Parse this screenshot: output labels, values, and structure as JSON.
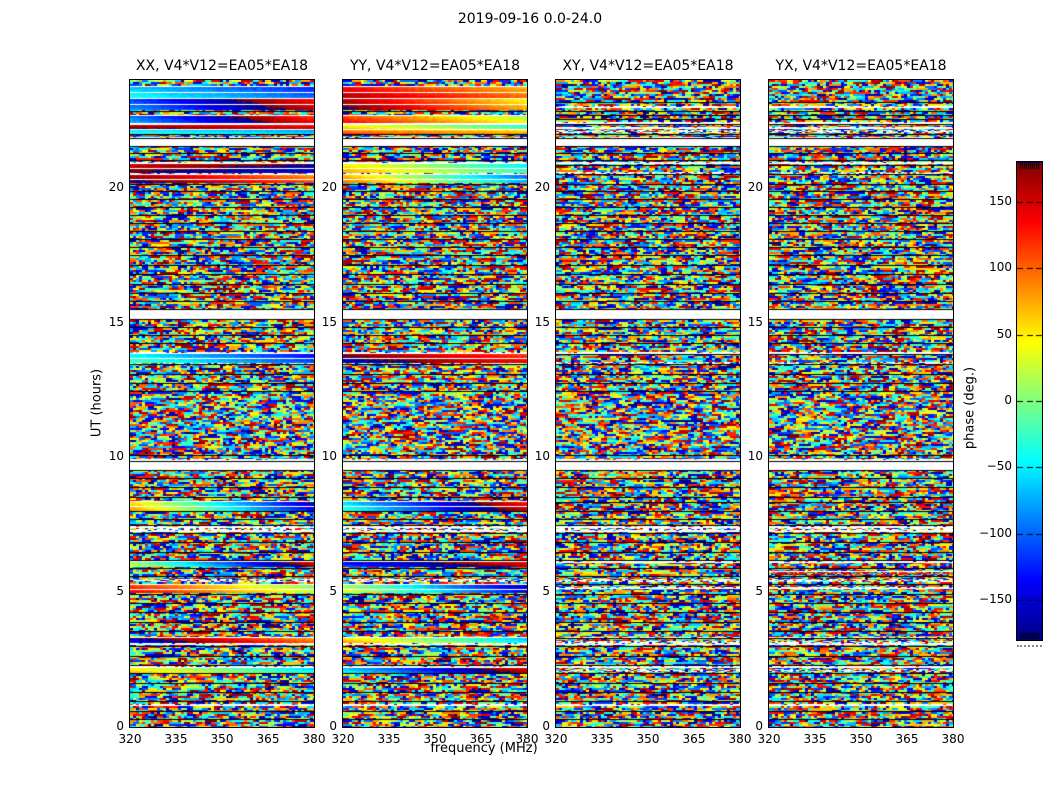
{
  "figure": {
    "title": "2019-09-16 0.0-24.0",
    "xlabel": "frequency (MHz)",
    "ylabel": "UT (hours)",
    "colorbar_label": "phase (deg.)"
  },
  "chart_data": {
    "type": "heatmap",
    "colormap": "jet",
    "value_label": "phase (deg.)",
    "clim_deg": [
      -180,
      180
    ],
    "x_range_mhz": [
      320,
      380
    ],
    "y_range_hours": [
      0,
      24
    ],
    "x_tick_values": [
      320,
      335,
      350,
      365,
      380
    ],
    "x_tick_labels": [
      "320",
      "335",
      "350",
      "365",
      "380"
    ],
    "y_tick_values": [
      0,
      5,
      10,
      15,
      20
    ],
    "y_tick_labels": [
      "0",
      "5",
      "10",
      "15",
      "20"
    ],
    "colorbar_tick_values": [
      150,
      100,
      50,
      0,
      -50,
      -100,
      -150
    ],
    "colorbar_tick_labels": [
      "150",
      "100",
      "50",
      "0",
      "−50",
      "−100",
      "−150"
    ],
    "panels": [
      {
        "pol": "XX",
        "title": "XX, V4*V12=EA05*EA18",
        "coherent_bands": [
          [
            23.35,
            23.75,
            -50,
            -110
          ],
          [
            22.9,
            23.3,
            -95,
            -215
          ],
          [
            22.4,
            22.68,
            -80,
            -230
          ],
          [
            22.18,
            22.32,
            175,
            145
          ],
          [
            22.0,
            22.14,
            -35,
            -65
          ],
          [
            20.55,
            20.9,
            168,
            200
          ],
          [
            20.18,
            20.48,
            180,
            95
          ],
          [
            13.5,
            13.82,
            -30,
            -120
          ],
          [
            8.02,
            8.33,
            70,
            -150
          ],
          [
            5.93,
            6.12,
            25,
            -200
          ],
          [
            4.98,
            5.28,
            130,
            15
          ],
          [
            3.12,
            3.3,
            -150,
            -268
          ],
          [
            2.02,
            2.2,
            60,
            -45
          ]
        ]
      },
      {
        "pol": "YY",
        "title": "YY, V4*V12=EA05*EA18",
        "coherent_bands": [
          [
            23.35,
            23.75,
            150,
            85
          ],
          [
            22.9,
            23.3,
            175,
            60
          ],
          [
            22.4,
            22.68,
            125,
            30
          ],
          [
            22.18,
            22.32,
            60,
            -20
          ],
          [
            22.0,
            22.14,
            100,
            70
          ],
          [
            20.55,
            20.9,
            65,
            -35
          ],
          [
            20.18,
            20.48,
            85,
            -85
          ],
          [
            13.5,
            13.82,
            -170,
            -232
          ],
          [
            8.02,
            8.33,
            -40,
            -215
          ],
          [
            5.93,
            6.12,
            -120,
            -205
          ],
          [
            4.98,
            5.28,
            30,
            -150
          ],
          [
            3.12,
            3.3,
            70,
            -55
          ],
          [
            2.02,
            2.2,
            -50,
            -205
          ]
        ]
      },
      {
        "pol": "XY",
        "title": "XY, V4*V12=EA05*EA18",
        "coherent_bands": []
      },
      {
        "pol": "YX",
        "title": "YX, V4*V12=EA05*EA18",
        "coherent_bands": [
          [
            5.62,
            5.75,
            160,
            130,
            0.55
          ]
        ]
      }
    ],
    "time_gaps_hours": [
      [
        21.55,
        21.85
      ],
      [
        15.15,
        15.5
      ],
      [
        9.55,
        9.85
      ]
    ],
    "scan_separators_hours": [
      23.2,
      22.85,
      22.7,
      22.55,
      22.35,
      22.0,
      21.85,
      21.55,
      21.3,
      21.05,
      20.85,
      20.5,
      20.15,
      19.9,
      19.6,
      19.3,
      19.0,
      18.7,
      18.4,
      18.1,
      17.8,
      17.5,
      17.15,
      16.8,
      16.45,
      16.1,
      15.8,
      15.5,
      15.15,
      14.85,
      14.55,
      14.25,
      13.85,
      13.45,
      13.1,
      12.75,
      12.45,
      10.1,
      9.85,
      9.55,
      9.25,
      8.9,
      8.55,
      8.35,
      8.0,
      7.7,
      7.5,
      7.2,
      6.85,
      6.5,
      6.2,
      5.9,
      5.6,
      5.3,
      4.95,
      4.6,
      4.25,
      3.9,
      3.55,
      3.3,
      3.0,
      2.65,
      2.3,
      2.0,
      1.65,
      1.3,
      0.95,
      0.6,
      0.3
    ],
    "white_rows_hours": [
      23.05,
      22.45,
      22.25,
      21.9,
      20.95,
      13.9,
      9.95,
      7.45,
      7.3,
      6.15,
      5.2,
      3.35,
      3.1,
      2.25,
      0.85
    ],
    "speckle_rows_hours": [
      22.15,
      20.6,
      13.55,
      7.4,
      5.5,
      3.2,
      2.15
    ]
  },
  "layout_note": "4 polarization waterfall panels sharing frequency and UT axes, jet-colormap colorbar at right"
}
